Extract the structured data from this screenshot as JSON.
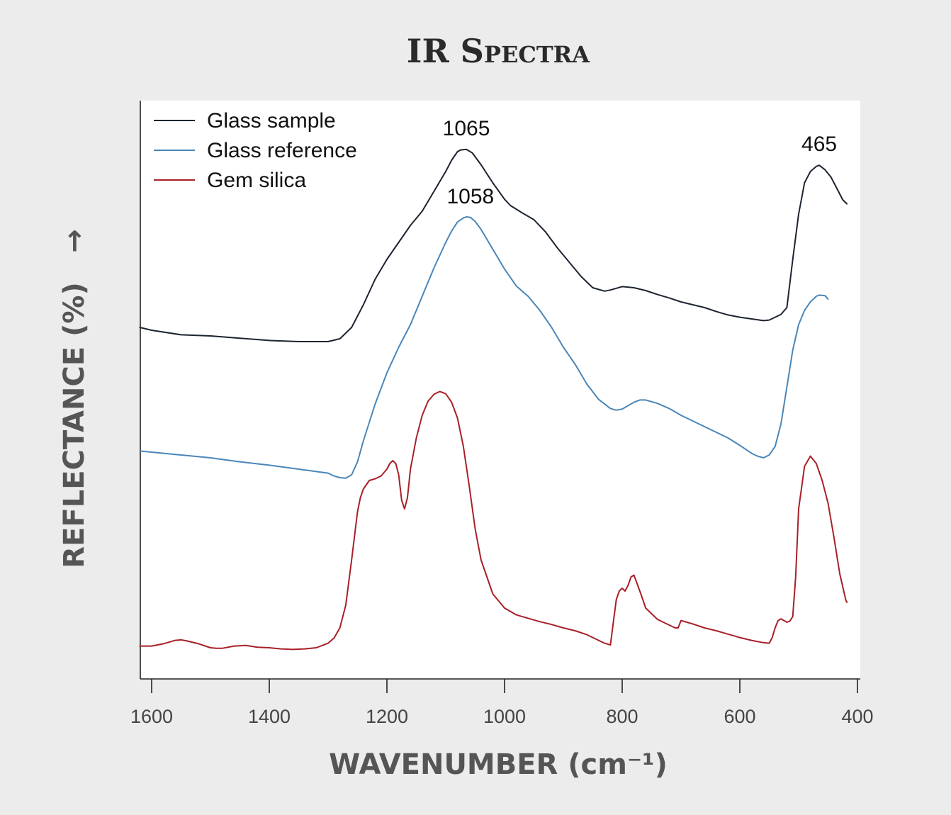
{
  "chart_data": {
    "type": "line",
    "title": "IR Spectra",
    "xlabel": "WAVENUMBER (cm⁻¹)",
    "ylabel": "REFLECTANCE (%)",
    "y_arrow": "→",
    "xlim": [
      1620,
      400
    ],
    "x_reversed": true,
    "ylim": [
      0,
      100
    ],
    "y_ticks_shown": false,
    "grid": false,
    "legend_placement": "top-left",
    "x_ticks": [
      1600,
      1400,
      1200,
      1000,
      800,
      600,
      400
    ],
    "series": [
      {
        "name": "Glass sample",
        "color": "#1c2430",
        "x": [
          1620,
          1600,
          1550,
          1500,
          1450,
          1400,
          1350,
          1300,
          1280,
          1260,
          1240,
          1220,
          1200,
          1180,
          1160,
          1140,
          1120,
          1100,
          1090,
          1080,
          1075,
          1065,
          1055,
          1040,
          1020,
          1000,
          990,
          970,
          950,
          930,
          910,
          890,
          870,
          850,
          830,
          820,
          800,
          780,
          760,
          740,
          720,
          700,
          680,
          660,
          640,
          620,
          600,
          580,
          560,
          550,
          540,
          530,
          520,
          510,
          500,
          490,
          480,
          470,
          465,
          455,
          445,
          435,
          425,
          418
        ],
        "y": [
          61.0,
          60.5,
          59.7,
          59.5,
          59.1,
          58.7,
          58.5,
          58.5,
          59.0,
          61.0,
          65.0,
          69.5,
          73.0,
          76.0,
          79.0,
          81.5,
          85.0,
          88.5,
          90.5,
          92.0,
          92.3,
          92.4,
          91.8,
          89.7,
          86.5,
          83.6,
          82.5,
          81.2,
          80.0,
          77.8,
          75.0,
          72.5,
          70.0,
          68.0,
          67.4,
          67.6,
          68.2,
          68.0,
          67.5,
          66.8,
          66.2,
          65.5,
          65.0,
          64.5,
          63.8,
          63.2,
          62.8,
          62.5,
          62.2,
          62.3,
          62.8,
          63.3,
          64.5,
          73.0,
          81.0,
          86.5,
          88.5,
          89.4,
          89.6,
          88.8,
          87.5,
          85.5,
          83.5,
          82.8
        ]
      },
      {
        "name": "Glass reference",
        "color": "#4a86b8",
        "x": [
          1620,
          1600,
          1550,
          1500,
          1450,
          1400,
          1350,
          1300,
          1290,
          1280,
          1270,
          1260,
          1250,
          1240,
          1220,
          1200,
          1180,
          1160,
          1140,
          1120,
          1100,
          1090,
          1080,
          1070,
          1065,
          1058,
          1050,
          1040,
          1020,
          1000,
          980,
          960,
          940,
          920,
          900,
          880,
          860,
          840,
          820,
          810,
          800,
          780,
          770,
          760,
          740,
          720,
          700,
          680,
          660,
          640,
          620,
          600,
          580,
          570,
          560,
          550,
          540,
          530,
          520,
          510,
          500,
          490,
          480,
          470,
          465,
          455,
          450
        ],
        "y": [
          39.2,
          39.0,
          38.5,
          38.0,
          37.3,
          36.7,
          36.0,
          35.3,
          34.8,
          34.5,
          34.4,
          35.0,
          37.3,
          41.0,
          47.5,
          53.0,
          57.5,
          61.5,
          66.5,
          71.5,
          76.0,
          78.0,
          79.6,
          80.3,
          80.5,
          80.4,
          79.7,
          78.3,
          74.8,
          71.3,
          68.3,
          66.5,
          64.0,
          61.0,
          57.5,
          54.5,
          51.0,
          48.3,
          46.7,
          46.4,
          46.6,
          47.8,
          48.2,
          48.2,
          47.6,
          46.7,
          45.5,
          44.5,
          43.5,
          42.5,
          41.5,
          40.2,
          38.8,
          38.3,
          38.0,
          38.5,
          40.0,
          44.0,
          50.5,
          57.0,
          61.5,
          64.0,
          65.5,
          66.5,
          66.7,
          66.6,
          66.0
        ]
      },
      {
        "name": "Gem silica",
        "color": "#a82028",
        "x": [
          1620,
          1600,
          1580,
          1560,
          1550,
          1540,
          1520,
          1500,
          1490,
          1480,
          1460,
          1440,
          1420,
          1400,
          1380,
          1360,
          1340,
          1320,
          1300,
          1290,
          1280,
          1270,
          1260,
          1250,
          1245,
          1240,
          1230,
          1220,
          1210,
          1200,
          1195,
          1190,
          1185,
          1180,
          1175,
          1170,
          1165,
          1160,
          1150,
          1140,
          1130,
          1120,
          1110,
          1100,
          1090,
          1080,
          1070,
          1060,
          1050,
          1040,
          1020,
          1000,
          980,
          960,
          940,
          920,
          900,
          880,
          860,
          840,
          830,
          820,
          815,
          810,
          805,
          800,
          795,
          790,
          785,
          780,
          770,
          760,
          740,
          720,
          710,
          705,
          700,
          690,
          680,
          660,
          640,
          620,
          600,
          580,
          560,
          550,
          545,
          540,
          535,
          530,
          520,
          515,
          510,
          505,
          500,
          490,
          480,
          470,
          460,
          450,
          440,
          430,
          420,
          418
        ],
        "y": [
          4.8,
          4.8,
          5.2,
          5.8,
          5.9,
          5.7,
          5.2,
          4.5,
          4.4,
          4.4,
          4.8,
          4.9,
          4.6,
          4.5,
          4.3,
          4.2,
          4.3,
          4.5,
          5.3,
          6.2,
          8.0,
          12.0,
          20.0,
          28.5,
          31.0,
          32.5,
          34.0,
          34.3,
          34.8,
          36.0,
          37.0,
          37.5,
          37.0,
          35.0,
          30.5,
          29.0,
          31.0,
          36.0,
          41.5,
          45.5,
          48.0,
          49.2,
          49.7,
          49.3,
          47.8,
          45.0,
          40.0,
          33.0,
          25.5,
          20.0,
          14.0,
          11.5,
          10.3,
          9.7,
          9.1,
          8.6,
          8.0,
          7.5,
          6.8,
          5.8,
          5.3,
          5.0,
          9.0,
          13.0,
          14.5,
          15.0,
          14.5,
          15.5,
          17.0,
          17.3,
          14.5,
          11.5,
          9.5,
          8.5,
          8.0,
          8.0,
          9.3,
          9.0,
          8.7,
          8.0,
          7.5,
          6.9,
          6.3,
          5.8,
          5.4,
          5.3,
          6.3,
          8.0,
          9.3,
          9.6,
          9.0,
          9.2,
          10.0,
          17.0,
          29.0,
          36.5,
          38.3,
          37.0,
          34.0,
          30.0,
          24.0,
          17.5,
          13.0,
          12.5
        ]
      }
    ],
    "annotations": [
      {
        "text": "1065",
        "x": 1065,
        "series": 0
      },
      {
        "text": "1058",
        "x": 1058,
        "series": 1
      },
      {
        "text": "465",
        "x": 465,
        "series": 0
      }
    ]
  }
}
